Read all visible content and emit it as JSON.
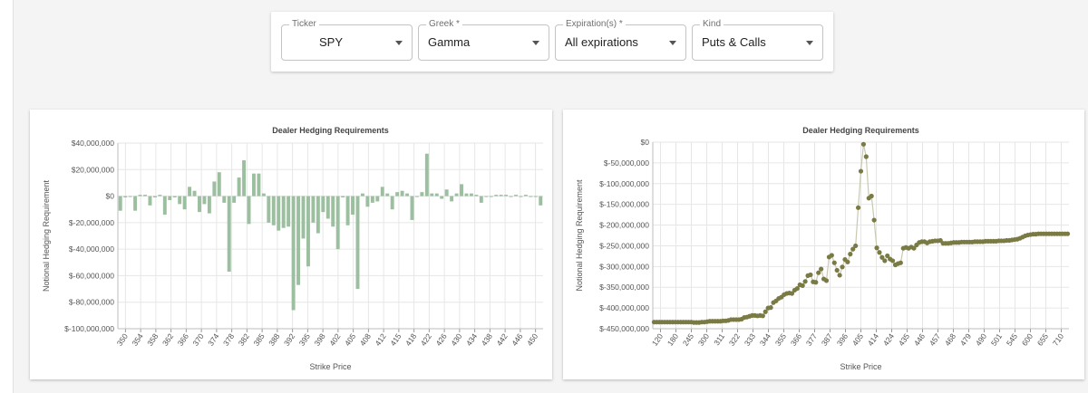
{
  "filters": {
    "ticker": {
      "label": "Ticker",
      "value": "SPY"
    },
    "greek": {
      "label": "Greek *",
      "value": "Gamma"
    },
    "expirations": {
      "label": "Expiration(s) *",
      "value": "All expirations"
    },
    "kind": {
      "label": "Kind",
      "value": "Puts & Calls"
    }
  },
  "colors": {
    "bar": "#9bbf9f",
    "dot": "#7a7a45",
    "line": "#c9c9b0",
    "grid": "#e6e6e6"
  },
  "chart_data": [
    {
      "type": "bar",
      "title": "Dealer Hedging Requirements",
      "xlabel": "Strike Price",
      "ylabel": "Notional Hedging Requirement",
      "ylim": [
        -100000000,
        40000000
      ],
      "yticks": [
        40000000,
        20000000,
        0,
        -20000000,
        -40000000,
        -60000000,
        -80000000,
        -100000000
      ],
      "ytick_labels": [
        "$40,000,000",
        "$20,000,000",
        "$0",
        "$-20,000,000",
        "$-40,000,000",
        "$-60,000,000",
        "$-80,000,000",
        "$-100,000,000"
      ],
      "xtick_labels": [
        "350",
        "354",
        "358",
        "362",
        "366",
        "370",
        "374",
        "378",
        "382",
        "385",
        "388",
        "392",
        "395",
        "398",
        "402",
        "405",
        "408",
        "412",
        "415",
        "418",
        "422",
        "426",
        "430",
        "434",
        "438",
        "442",
        "446",
        "450"
      ],
      "grid": true,
      "values": [
        -11000000,
        -1000000,
        0,
        -11000000,
        1000000,
        1000000,
        -7000000,
        -1000000,
        1000000,
        -14000000,
        -3000000,
        -1000000,
        -6000000,
        -10000000,
        7000000,
        4000000,
        -12000000,
        -6000000,
        -13000000,
        11000000,
        18000000,
        -5000000,
        -57000000,
        -5000000,
        14000000,
        27000000,
        -21000000,
        17000000,
        17000000,
        2000000,
        -20000000,
        -22000000,
        -26000000,
        -24000000,
        -23000000,
        -86000000,
        -67000000,
        -32000000,
        -53000000,
        -20000000,
        -28000000,
        -12000000,
        -17000000,
        -23000000,
        -40000000,
        -1000000,
        -22000000,
        -14000000,
        -70000000,
        2000000,
        -8000000,
        -5000000,
        -4000000,
        7000000,
        2000000,
        -10000000,
        3000000,
        4000000,
        2000000,
        -18000000,
        0,
        3000000,
        32000000,
        2000000,
        2000000,
        -2000000,
        5000000,
        -4000000,
        2000000,
        9000000,
        2000000,
        2000000,
        1000000,
        -5000000,
        0,
        0,
        1000000,
        1000000,
        1000000,
        0,
        1000000,
        0,
        1000000,
        0,
        0,
        -7000000
      ]
    },
    {
      "type": "scatter",
      "title": "Dealer Hedging Requirements",
      "xlabel": "Strike Price",
      "ylabel": "Notional Hedging Requirement",
      "ylim": [
        -450000000,
        0
      ],
      "yticks": [
        0,
        -50000000,
        -100000000,
        -150000000,
        -200000000,
        -250000000,
        -300000000,
        -350000000,
        -400000000,
        -450000000
      ],
      "ytick_labels": [
        "$0",
        "$-50,000,000",
        "$-100,000,000",
        "$-150,000,000",
        "$-200,000,000",
        "$-250,000,000",
        "$-300,000,000",
        "$-350,000,000",
        "$-400,000,000",
        "$-450,000,000"
      ],
      "xtick_labels": [
        "120",
        "180",
        "245",
        "300",
        "311",
        "322",
        "333",
        "344",
        "355",
        "366",
        "377",
        "387",
        "396",
        "405",
        "414",
        "424",
        "435",
        "446",
        "457",
        "468",
        "479",
        "490",
        "501",
        "545",
        "600",
        "655",
        "710"
      ],
      "grid": true,
      "connected": true,
      "values": [
        -434000000,
        -434000000,
        -434000000,
        -434000000,
        -434000000,
        -434000000,
        -434000000,
        -434000000,
        -434000000,
        -434000000,
        -434000000,
        -434000000,
        -434000000,
        -434000000,
        -434000000,
        -435000000,
        -435000000,
        -435000000,
        -434000000,
        -434000000,
        -433000000,
        -432000000,
        -432000000,
        -432000000,
        -432000000,
        -432000000,
        -431000000,
        -431000000,
        -430000000,
        -428000000,
        -428000000,
        -428000000,
        -428000000,
        -427000000,
        -423000000,
        -422000000,
        -420000000,
        -418000000,
        -418000000,
        -419000000,
        -418000000,
        -419000000,
        -409000000,
        -400000000,
        -399000000,
        -387000000,
        -383000000,
        -377000000,
        -374000000,
        -368000000,
        -365000000,
        -364000000,
        -365000000,
        -357000000,
        -353000000,
        -344000000,
        -346000000,
        -336000000,
        -322000000,
        -320000000,
        -337000000,
        -338000000,
        -315000000,
        -306000000,
        -330000000,
        -334000000,
        -277000000,
        -273000000,
        -291000000,
        -309000000,
        -321000000,
        -301000000,
        -283000000,
        -289000000,
        -270000000,
        -258000000,
        -250000000,
        -158000000,
        -70000000,
        -5000000,
        -35000000,
        -135000000,
        -130000000,
        -188000000,
        -255000000,
        -266000000,
        -278000000,
        -286000000,
        -274000000,
        -282000000,
        -286000000,
        -296000000,
        -293000000,
        -291000000,
        -256000000,
        -254000000,
        -256000000,
        -253000000,
        -256000000,
        -248000000,
        -242000000,
        -240000000,
        -240000000,
        -243000000,
        -240000000,
        -239000000,
        -238000000,
        -238000000,
        -237000000,
        -244000000,
        -244000000,
        -244000000,
        -243000000,
        -242000000,
        -242000000,
        -242000000,
        -241000000,
        -241000000,
        -241000000,
        -241000000,
        -241000000,
        -240000000,
        -240000000,
        -240000000,
        -240000000,
        -239000000,
        -239000000,
        -239000000,
        -239000000,
        -239000000,
        -238000000,
        -238000000,
        -238000000,
        -237000000,
        -237000000,
        -236000000,
        -235000000,
        -234000000,
        -232000000,
        -229000000,
        -226000000,
        -224000000,
        -223000000,
        -222000000,
        -222000000,
        -221000000,
        -221000000,
        -221000000,
        -221000000,
        -221000000,
        -221000000,
        -221000000,
        -221000000,
        -221000000,
        -221000000,
        -221000000,
        -221000000
      ]
    }
  ]
}
